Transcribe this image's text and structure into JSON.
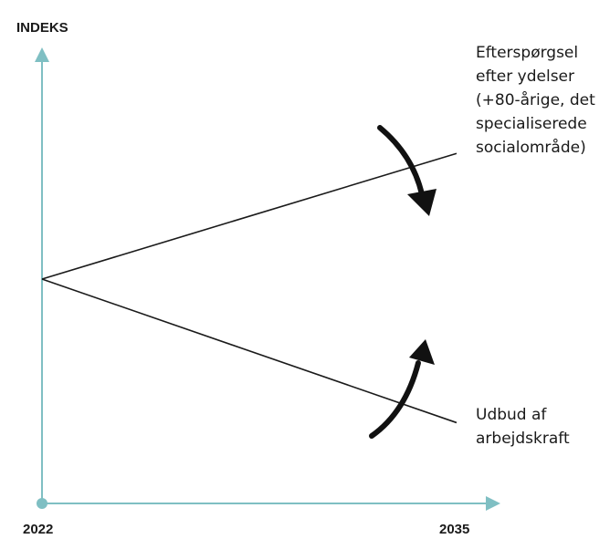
{
  "chart_data": {
    "type": "line",
    "ylabel": "INDEKS",
    "xlabel": "",
    "x_ticks": [
      "2022",
      "2035"
    ],
    "xlim": [
      2022,
      2035
    ],
    "ylim": [
      0,
      100
    ],
    "grid": false,
    "legend": "none",
    "series": [
      {
        "x": [
          2022,
          2035
        ],
        "y": [
          50,
          78
        ],
        "label_lines": [
          "Efterspørgsel",
          "efter ydelser",
          "(+80-årige, det",
          "specialiserede",
          "socialområde)"
        ]
      },
      {
        "x": [
          2022,
          2035
        ],
        "y": [
          50,
          18
        ],
        "label_lines": [
          "Udbud af",
          "arbejdskraft"
        ]
      }
    ],
    "annotations": [
      {
        "type": "curved-arrow",
        "direction": "down",
        "near_series": 0
      },
      {
        "type": "curved-arrow",
        "direction": "up",
        "near_series": 1
      }
    ],
    "colors": {
      "axis": "#7fbfc3",
      "line": "#1a1a1a",
      "arrow": "#111111",
      "text": "#1a1a1a"
    }
  }
}
